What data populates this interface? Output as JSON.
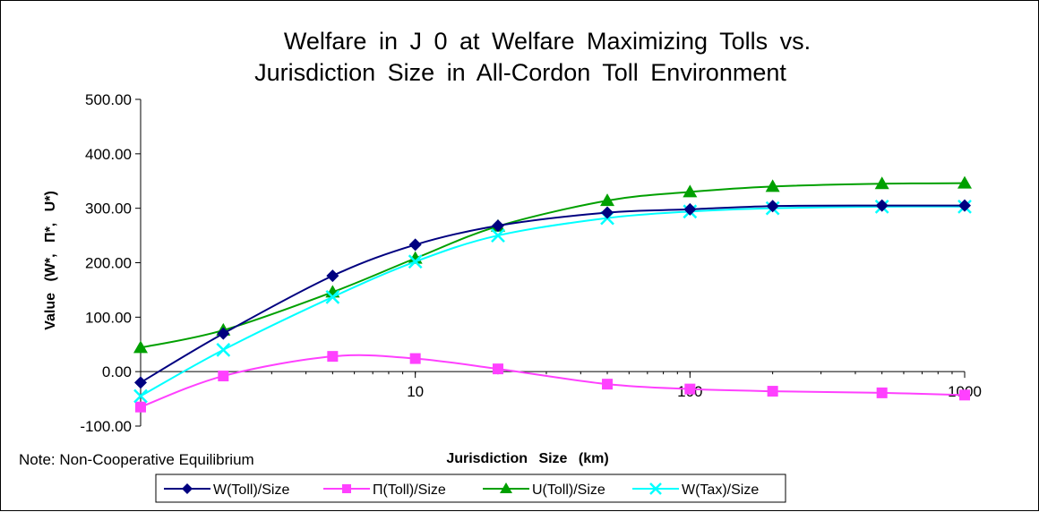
{
  "chart_data": {
    "type": "line",
    "title_lines": [
      "Welfare in J 0 at Welfare Maximizing Tolls vs.",
      "Jurisdiction Size in All-Cordon Toll Environment"
    ],
    "xlabel": "Jurisdiction Size (km)",
    "ylabel": "Value (W*, Π*, U*)",
    "x_scale": "log",
    "xlim": [
      1,
      1000
    ],
    "ylim": [
      -100,
      500
    ],
    "x_ticks": [
      10,
      100,
      1000
    ],
    "x_tick_labels": [
      "10",
      "100",
      "1000"
    ],
    "y_ticks": [
      -100,
      0,
      100,
      200,
      300,
      400,
      500
    ],
    "y_tick_labels": [
      "-100.00",
      "0.00",
      "100.00",
      "200.00",
      "300.00",
      "400.00",
      "500.00"
    ],
    "grid": false,
    "legend_position": "bottom",
    "x": [
      1,
      2,
      5,
      10,
      20,
      50,
      100,
      200,
      500,
      1000
    ],
    "series": [
      {
        "name": "W(Toll)/Size",
        "color": "#000080",
        "marker": "diamond",
        "values": [
          -20,
          70,
          176,
          233,
          268,
          292,
          298,
          304,
          305,
          305
        ]
      },
      {
        "name": "Π(Toll)/Size",
        "color": "#ff40ff",
        "marker": "square",
        "values": [
          -65,
          -8,
          28,
          24,
          5,
          -23,
          -32,
          -36,
          -39,
          -43
        ]
      },
      {
        "name": "U(Toll)/Size",
        "color": "#00a000",
        "marker": "triangle",
        "values": [
          44,
          76,
          146,
          208,
          267,
          314,
          330,
          340,
          345,
          346
        ]
      },
      {
        "name": "W(Tax)/Size",
        "color": "#00ffff",
        "marker": "x",
        "values": [
          -45,
          40,
          137,
          202,
          250,
          282,
          294,
          300,
          303,
          303
        ]
      }
    ],
    "note": "Note: Non-Cooperative Equilibrium"
  }
}
